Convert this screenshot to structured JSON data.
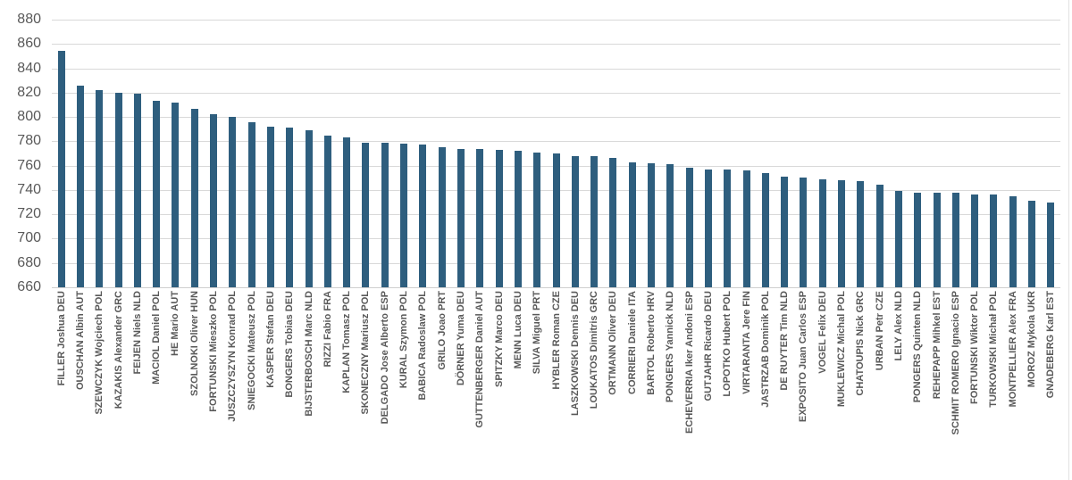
{
  "chart_data": {
    "type": "bar",
    "title": "",
    "xlabel": "",
    "ylabel": "",
    "categories": [
      "FILLER Joshua DEU",
      "OUSCHAN Albin AUT",
      "SZEWCZYK Wojciech POL",
      "KAZAKIS Alexander GRC",
      "FEIJEN Niels NLD",
      "MACIOL Daniel POL",
      "HE Mario AUT",
      "SZOLNOKI Oliver HUN",
      "FORTUNSKI Mieszko POL",
      "JUSZCZYSZYN Konrad POL",
      "SNIEGOCKI Mateusz POL",
      "KASPER Stefan DEU",
      "BONGERS Tobias DEU",
      "BIJSTERBOSCH Marc NLD",
      "RIZZI Fabio FRA",
      "KAPLAN Tomasz POL",
      "SKONECZNY Mariusz POL",
      "DELGADO Jose Alberto ESP",
      "KURAL Szymon POL",
      "BABICA Radoslaw POL",
      "GRILO Joao PRT",
      "DÖRNER Yuma DEU",
      "GUTTENBERGER Daniel AUT",
      "SPITZKY Marco DEU",
      "MENN Luca DEU",
      "SILVA Miguel PRT",
      "HYBLER Roman CZE",
      "LASZKOWSKI Dennis DEU",
      "LOUKATOS Dimitris GRC",
      "ORTMANN Oliver DEU",
      "CORRIERI Daniele ITA",
      "BARTOL Roberto HRV",
      "PONGERS Yannick NLD",
      "ECHEVERRIA Iker Andoni ESP",
      "GUTJAHR Ricardo DEU",
      "LOPOTKO Hubert POL",
      "VIRTARANTA Jere FIN",
      "JASTRZAB Dominik POL",
      "DE RUYTER Tim NLD",
      "EXPOSITO Juan Carlos ESP",
      "VOGEL Felix DEU",
      "MUKLEWICZ Michal POL",
      "CHATOUPIS Nick GRC",
      "URBAN Petr CZE",
      "LELY Alex NLD",
      "PONGERS Quinten NLD",
      "REHEPAPP Mihkel EST",
      "SCHMIT ROMERO Ignacio ESP",
      "FORTUNSKI Wiktor POL",
      "TURKOWSKI Michał POL",
      "MONTPELLIER Alex FRA",
      "MOROZ Mykola UKR",
      "GNADEBERG Karl EST"
    ],
    "values": [
      854,
      826,
      822,
      820,
      819,
      813,
      812,
      807,
      802,
      800,
      796,
      792,
      791,
      789,
      785,
      783,
      779,
      779,
      778,
      777,
      775,
      774,
      774,
      773,
      772,
      771,
      770,
      768,
      768,
      766,
      763,
      762,
      761,
      758,
      757,
      757,
      756,
      754,
      751,
      750,
      749,
      748,
      747,
      744,
      739,
      738,
      738,
      738,
      736,
      736,
      735,
      731,
      730
    ],
    "ylim": [
      660,
      880
    ],
    "yticks": [
      880,
      860,
      840,
      820,
      800,
      780,
      760,
      740,
      720,
      700,
      680,
      660
    ],
    "grid": "horizontal",
    "legend": "none",
    "bar_color": "#2e5e7e",
    "gridline_color": "#d9d9d9",
    "axis_text_color": "#595959"
  }
}
